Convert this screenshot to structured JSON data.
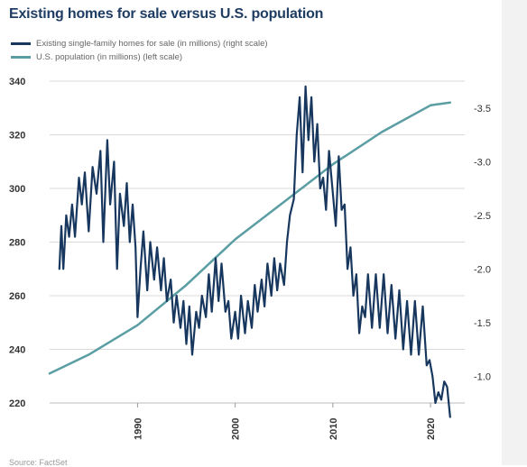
{
  "chart_data": {
    "type": "line",
    "title": "Existing homes for sale versus U.S. population",
    "legend": {
      "placement": "top-left",
      "entries": [
        "Existing single-family homes for sale (in millions) (right scale)",
        "U.S. population (in millions) (left scale)"
      ]
    },
    "left_axis": {
      "range": [
        220,
        340
      ],
      "ticks": [
        "340",
        "320",
        "300",
        "280",
        "260",
        "240",
        "220"
      ]
    },
    "right_axis": {
      "range": [
        0.75,
        3.75
      ],
      "ticks": [
        "-3.5",
        "-3.0",
        "-2.5",
        "-2.0",
        "-1.5",
        "-1.0"
      ]
    },
    "x_axis": {
      "range": [
        1981,
        2023.5
      ],
      "ticks": [
        "1990",
        "2000",
        "2010",
        "2020"
      ]
    },
    "grid": "horizontal",
    "series": [
      {
        "name": "Existing single-family homes for sale (in millions) (right scale)",
        "axis": "right",
        "color": "#17375e",
        "points": [
          [
            1982.0,
            2.0
          ],
          [
            1982.2,
            2.4
          ],
          [
            1982.4,
            2.0
          ],
          [
            1982.7,
            2.5
          ],
          [
            1983.0,
            2.3
          ],
          [
            1983.3,
            2.6
          ],
          [
            1983.6,
            2.3
          ],
          [
            1984.0,
            2.85
          ],
          [
            1984.3,
            2.6
          ],
          [
            1984.6,
            2.9
          ],
          [
            1985.0,
            2.35
          ],
          [
            1985.4,
            2.95
          ],
          [
            1985.8,
            2.7
          ],
          [
            1986.2,
            3.1
          ],
          [
            1986.5,
            2.25
          ],
          [
            1986.9,
            3.2
          ],
          [
            1987.2,
            2.6
          ],
          [
            1987.6,
            3.0
          ],
          [
            1987.9,
            2.0
          ],
          [
            1988.2,
            2.7
          ],
          [
            1988.6,
            2.4
          ],
          [
            1988.9,
            2.8
          ],
          [
            1989.2,
            2.25
          ],
          [
            1989.5,
            2.6
          ],
          [
            1989.8,
            2.2
          ],
          [
            1990.0,
            1.55
          ],
          [
            1990.3,
            2.0
          ],
          [
            1990.6,
            2.35
          ],
          [
            1991.0,
            1.8
          ],
          [
            1991.3,
            2.25
          ],
          [
            1991.7,
            1.9
          ],
          [
            1992.0,
            2.2
          ],
          [
            1992.4,
            1.8
          ],
          [
            1992.7,
            2.1
          ],
          [
            1993.0,
            1.7
          ],
          [
            1993.4,
            1.9
          ],
          [
            1993.7,
            1.5
          ],
          [
            1994.0,
            1.75
          ],
          [
            1994.4,
            1.45
          ],
          [
            1994.7,
            1.7
          ],
          [
            1995.0,
            1.3
          ],
          [
            1995.3,
            1.65
          ],
          [
            1995.6,
            1.2
          ],
          [
            1996.0,
            1.6
          ],
          [
            1996.3,
            1.45
          ],
          [
            1996.6,
            1.75
          ],
          [
            1997.0,
            1.55
          ],
          [
            1997.3,
            1.95
          ],
          [
            1997.6,
            1.6
          ],
          [
            1998.0,
            2.1
          ],
          [
            1998.3,
            1.7
          ],
          [
            1998.6,
            2.05
          ],
          [
            1999.0,
            1.6
          ],
          [
            1999.3,
            1.7
          ],
          [
            1999.6,
            1.35
          ],
          [
            2000.0,
            1.6
          ],
          [
            2000.3,
            1.35
          ],
          [
            2000.6,
            1.75
          ],
          [
            2001.0,
            1.4
          ],
          [
            2001.3,
            1.7
          ],
          [
            2001.7,
            1.45
          ],
          [
            2002.0,
            1.85
          ],
          [
            2002.3,
            1.6
          ],
          [
            2002.7,
            1.9
          ],
          [
            2003.0,
            1.65
          ],
          [
            2003.3,
            2.05
          ],
          [
            2003.7,
            1.75
          ],
          [
            2004.0,
            2.1
          ],
          [
            2004.3,
            1.8
          ],
          [
            2004.6,
            2.05
          ],
          [
            2005.0,
            1.85
          ],
          [
            2005.3,
            2.25
          ],
          [
            2005.6,
            2.5
          ],
          [
            2006.0,
            2.65
          ],
          [
            2006.3,
            3.25
          ],
          [
            2006.6,
            3.6
          ],
          [
            2006.9,
            2.9
          ],
          [
            2007.2,
            3.7
          ],
          [
            2007.5,
            3.2
          ],
          [
            2007.8,
            3.6
          ],
          [
            2008.1,
            3.0
          ],
          [
            2008.4,
            3.35
          ],
          [
            2008.7,
            2.75
          ],
          [
            2009.0,
            2.85
          ],
          [
            2009.3,
            2.55
          ],
          [
            2009.6,
            3.1
          ],
          [
            2010.0,
            2.7
          ],
          [
            2010.3,
            2.4
          ],
          [
            2010.6,
            3.05
          ],
          [
            2010.9,
            2.55
          ],
          [
            2011.2,
            2.6
          ],
          [
            2011.5,
            2.0
          ],
          [
            2011.8,
            2.2
          ],
          [
            2012.1,
            1.75
          ],
          [
            2012.4,
            1.95
          ],
          [
            2012.7,
            1.4
          ],
          [
            2013.0,
            1.65
          ],
          [
            2013.3,
            1.55
          ],
          [
            2013.6,
            1.95
          ],
          [
            2014.0,
            1.45
          ],
          [
            2014.4,
            1.95
          ],
          [
            2014.8,
            1.45
          ],
          [
            2015.2,
            1.95
          ],
          [
            2015.6,
            1.4
          ],
          [
            2016.0,
            1.85
          ],
          [
            2016.4,
            1.35
          ],
          [
            2016.8,
            1.8
          ],
          [
            2017.2,
            1.25
          ],
          [
            2017.6,
            1.7
          ],
          [
            2018.0,
            1.2
          ],
          [
            2018.4,
            1.7
          ],
          [
            2018.8,
            1.2
          ],
          [
            2019.2,
            1.65
          ],
          [
            2019.6,
            1.1
          ],
          [
            2019.9,
            1.15
          ],
          [
            2020.2,
            1.0
          ],
          [
            2020.5,
            0.75
          ],
          [
            2020.8,
            0.85
          ],
          [
            2021.1,
            0.78
          ],
          [
            2021.4,
            0.95
          ],
          [
            2021.7,
            0.9
          ],
          [
            2022.0,
            0.62
          ]
        ]
      },
      {
        "name": "U.S. population (in millions) (left scale)",
        "axis": "left",
        "color": "#5a9ea3",
        "points": [
          [
            1981.0,
            231
          ],
          [
            1985.0,
            238
          ],
          [
            1990.0,
            249
          ],
          [
            1995.0,
            264
          ],
          [
            2000.0,
            281
          ],
          [
            2005.0,
            295
          ],
          [
            2010.0,
            309
          ],
          [
            2015.0,
            321
          ],
          [
            2020.0,
            331
          ],
          [
            2022.0,
            332
          ]
        ]
      }
    ]
  },
  "footer": {
    "source": "Source: FactSet"
  }
}
